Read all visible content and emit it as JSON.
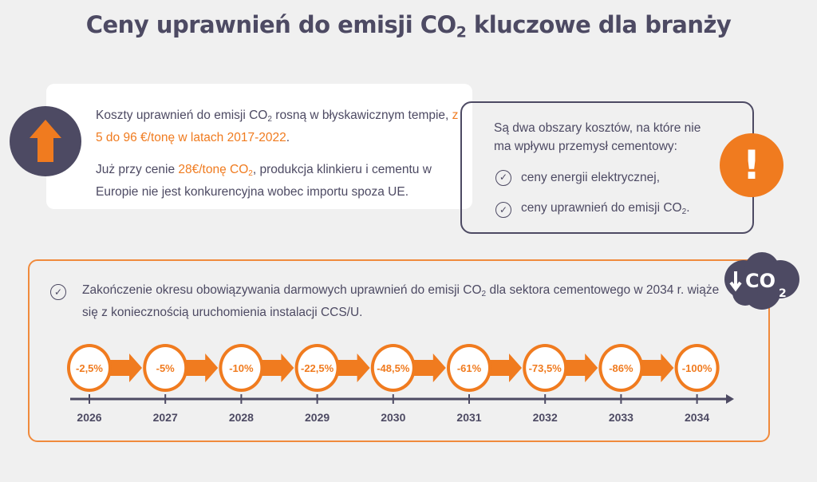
{
  "title": {
    "pre": "Ceny uprawnień do emisji CO",
    "sub": "2",
    "post": " kluczowe dla branży"
  },
  "box_rising": {
    "p1_a": "Koszty uprawnień do emisji CO",
    "p1_sub": "2",
    "p1_b": " rosną w błyskawicznym tempie, ",
    "p1_hl": "z 5 do 96 €/tonę w latach 2017-2022",
    "p1_c": ".",
    "p2_a": "Już przy cenie ",
    "p2_hl": "28€/tonę CO",
    "p2_hl_sub": "2",
    "p2_b": ", produkcja klinkieru i cementu w Europie nie jest konkurencyjna wobec importu spoza UE.",
    "icon": "arrow-up-icon"
  },
  "box_costs": {
    "heading": "Są dwa obszary kosztów, na które nie ma wpływu przemysł cementowy:",
    "items": [
      {
        "text": "ceny energii elektrycznej,",
        "sub": ""
      },
      {
        "text": "ceny uprawnień do emisji CO",
        "sub": "2",
        "post": "."
      }
    ],
    "icon": "exclamation-icon"
  },
  "box_timeline": {
    "text_a": "Zakończenie okresu obowiązywania darmowych uprawnień do emisji CO",
    "text_sub": "2",
    "text_b": " dla sektora cementowego w 2034 r. wiąże się z koniecznością uruchomienia instalacji CCS/U.",
    "cloud_label": "CO",
    "cloud_sub": "2",
    "steps": [
      {
        "year": "2026",
        "value": "-2,5%"
      },
      {
        "year": "2027",
        "value": "-5%"
      },
      {
        "year": "2028",
        "value": "-10%"
      },
      {
        "year": "2029",
        "value": "-22,5%"
      },
      {
        "year": "2030",
        "value": "-48,5%"
      },
      {
        "year": "2031",
        "value": "-61%"
      },
      {
        "year": "2032",
        "value": "-73,5%"
      },
      {
        "year": "2033",
        "value": "-86%"
      },
      {
        "year": "2034",
        "value": "-100%"
      }
    ]
  },
  "colors": {
    "accent": "#f07b1f",
    "dark": "#4d4a63",
    "background": "#f0f0f0"
  }
}
